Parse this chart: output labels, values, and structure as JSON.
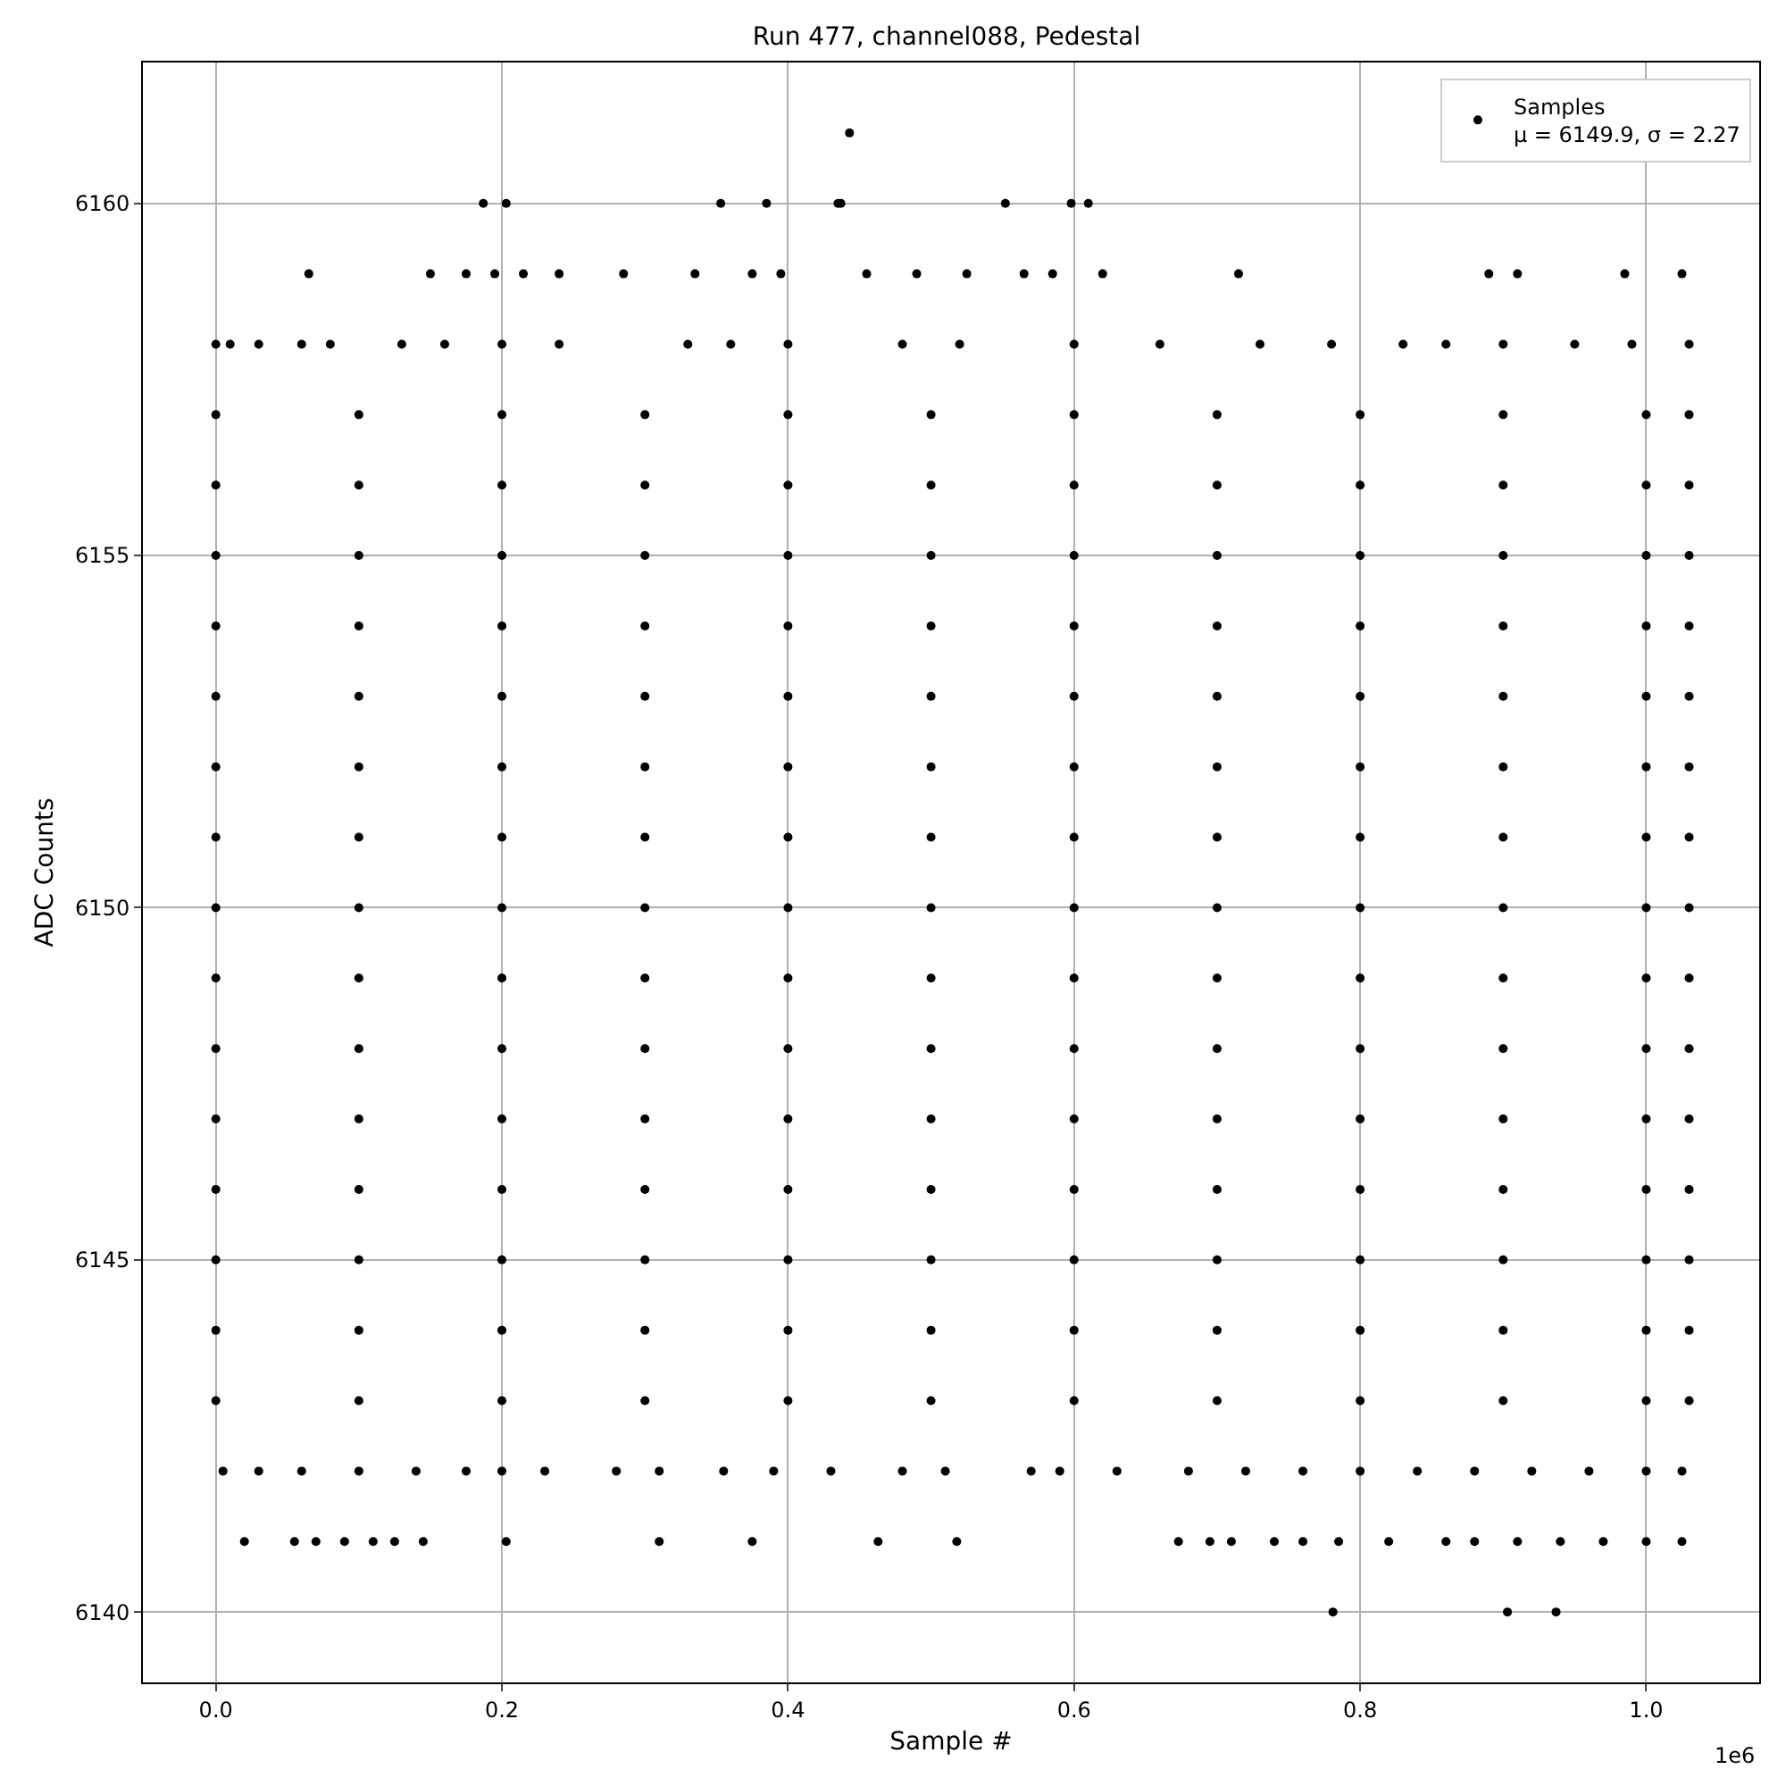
{
  "chart_data": {
    "type": "scatter",
    "title": "Run 477, channel088, Pedestal",
    "xlabel": "Sample #",
    "ylabel": "ADC Counts",
    "annotations": [
      "1e6"
    ],
    "xlim": [
      -0.051,
      1.079
    ],
    "xticks": [
      {
        "value": 0,
        "label": "0.0"
      },
      0.2,
      0.4,
      0.6,
      0.8,
      {
        "value": 1,
        "label": "1.0"
      }
    ],
    "ylim": [
      6139,
      6162
    ],
    "yticks": [
      6140,
      6145,
      6150,
      6155,
      6160
    ],
    "grid": true,
    "legend": "top right",
    "marker": "circle",
    "series": [
      {
        "name": "Samples\nμ = 6149.9, σ = 2.27",
        "color": "#000000",
        "x": [
          0,
          0.1,
          0.2,
          0.3,
          0.4,
          0.5,
          0.6,
          0.7,
          0.8,
          0.9,
          1.0,
          1.03,
          0,
          0.1,
          0.2,
          0.3,
          0.4,
          0.5,
          0.6,
          0.7,
          0.8,
          0.9,
          1.0,
          1.03,
          0,
          0.1,
          0.2,
          0.3,
          0.4,
          0.5,
          0.6,
          0.7,
          0.8,
          0.9,
          1.0,
          1.03,
          0,
          0.1,
          0.2,
          0.3,
          0.4,
          0.5,
          0.6,
          0.7,
          0.8,
          0.9,
          1.0,
          1.03,
          0,
          0.1,
          0.2,
          0.3,
          0.4,
          0.5,
          0.6,
          0.7,
          0.8,
          0.9,
          1.0,
          1.03,
          0,
          0.1,
          0.2,
          0.3,
          0.4,
          0.5,
          0.6,
          0.7,
          0.8,
          0.9,
          1.0,
          1.03,
          0,
          0.1,
          0.2,
          0.3,
          0.4,
          0.5,
          0.6,
          0.7,
          0.8,
          0.9,
          1.0,
          1.03,
          0,
          0.1,
          0.2,
          0.3,
          0.4,
          0.5,
          0.6,
          0.7,
          0.8,
          0.9,
          1.0,
          1.03,
          0,
          0.1,
          0.2,
          0.3,
          0.4,
          0.5,
          0.6,
          0.7,
          0.8,
          0.9,
          1.0,
          1.03,
          0,
          0.1,
          0.2,
          0.3,
          0.4,
          0.5,
          0.6,
          0.7,
          0.8,
          0.9,
          1.0,
          1.03,
          0,
          0.1,
          0.2,
          0.3,
          0.4,
          0.5,
          0.6,
          0.7,
          0.8,
          0.9,
          1.0,
          1.03,
          0,
          0.1,
          0.2,
          0.3,
          0.4,
          0.5,
          0.6,
          0.7,
          0.8,
          0.9,
          1.0,
          1.03,
          0,
          0.1,
          0.2,
          0.3,
          0.4,
          0.5,
          0.6,
          0.7,
          0.8,
          0.9,
          1.0,
          1.03,
          0,
          0.1,
          0.2,
          0.3,
          0.4,
          0.5,
          0.6,
          0.7,
          0.8,
          0.9,
          1.0,
          1.03,
          0,
          0.1,
          0.2,
          0.3,
          0.4,
          0.5,
          0.6,
          0.7,
          0.8,
          0.9,
          1.0,
          1.03,
          0,
          0.01,
          0.03,
          0.06,
          0.08,
          0.13,
          0.16,
          0.2,
          0.24,
          0.33,
          0.36,
          0.4,
          0.48,
          0.52,
          0.6,
          0.66,
          0.73,
          0.78,
          0.83,
          0.86,
          0.9,
          0.95,
          0.99,
          1.03,
          0.065,
          0.15,
          0.175,
          0.195,
          0.215,
          0.24,
          0.285,
          0.335,
          0.375,
          0.395,
          0.455,
          0.49,
          0.525,
          0.565,
          0.585,
          0.62,
          0.715,
          0.89,
          0.91,
          0.985,
          1.025,
          0.187,
          0.203,
          0.353,
          0.385,
          0.435,
          0.437,
          0.552,
          0.598,
          0.61,
          0.443,
          0.005,
          0.03,
          0.06,
          0.1,
          0.14,
          0.175,
          0.2,
          0.23,
          0.28,
          0.31,
          0.355,
          0.39,
          0.43,
          0.48,
          0.51,
          0.57,
          0.59,
          0.63,
          0.68,
          0.72,
          0.76,
          0.8,
          0.84,
          0.88,
          0.92,
          0.96,
          1.0,
          1.025,
          0.02,
          0.055,
          0.07,
          0.09,
          0.11,
          0.125,
          0.145,
          0.203,
          0.31,
          0.375,
          0.463,
          0.518,
          0.673,
          0.695,
          0.71,
          0.74,
          0.76,
          0.785,
          0.82,
          0.86,
          0.88,
          0.91,
          0.94,
          0.97,
          1.0,
          1.025,
          0.781,
          0.903,
          0.937
        ],
        "values": [
          6143,
          6143,
          6143,
          6143,
          6143,
          6143,
          6143,
          6143,
          6143,
          6143,
          6143,
          6143,
          6144,
          6144,
          6144,
          6144,
          6144,
          6144,
          6144,
          6144,
          6144,
          6144,
          6144,
          6144,
          6145,
          6145,
          6145,
          6145,
          6145,
          6145,
          6145,
          6145,
          6145,
          6145,
          6145,
          6145,
          6146,
          6146,
          6146,
          6146,
          6146,
          6146,
          6146,
          6146,
          6146,
          6146,
          6146,
          6146,
          6147,
          6147,
          6147,
          6147,
          6147,
          6147,
          6147,
          6147,
          6147,
          6147,
          6147,
          6147,
          6148,
          6148,
          6148,
          6148,
          6148,
          6148,
          6148,
          6148,
          6148,
          6148,
          6148,
          6148,
          6149,
          6149,
          6149,
          6149,
          6149,
          6149,
          6149,
          6149,
          6149,
          6149,
          6149,
          6149,
          6150,
          6150,
          6150,
          6150,
          6150,
          6150,
          6150,
          6150,
          6150,
          6150,
          6150,
          6150,
          6151,
          6151,
          6151,
          6151,
          6151,
          6151,
          6151,
          6151,
          6151,
          6151,
          6151,
          6151,
          6152,
          6152,
          6152,
          6152,
          6152,
          6152,
          6152,
          6152,
          6152,
          6152,
          6152,
          6152,
          6153,
          6153,
          6153,
          6153,
          6153,
          6153,
          6153,
          6153,
          6153,
          6153,
          6153,
          6153,
          6154,
          6154,
          6154,
          6154,
          6154,
          6154,
          6154,
          6154,
          6154,
          6154,
          6154,
          6154,
          6155,
          6155,
          6155,
          6155,
          6155,
          6155,
          6155,
          6155,
          6155,
          6155,
          6155,
          6155,
          6156,
          6156,
          6156,
          6156,
          6156,
          6156,
          6156,
          6156,
          6156,
          6156,
          6156,
          6156,
          6157,
          6157,
          6157,
          6157,
          6157,
          6157,
          6157,
          6157,
          6157,
          6157,
          6157,
          6157,
          6158,
          6158,
          6158,
          6158,
          6158,
          6158,
          6158,
          6158,
          6158,
          6158,
          6158,
          6158,
          6158,
          6158,
          6158,
          6158,
          6158,
          6158,
          6158,
          6158,
          6158,
          6158,
          6158,
          6158,
          6159,
          6159,
          6159,
          6159,
          6159,
          6159,
          6159,
          6159,
          6159,
          6159,
          6159,
          6159,
          6159,
          6159,
          6159,
          6159,
          6159,
          6159,
          6159,
          6159,
          6159,
          6160,
          6160,
          6160,
          6160,
          6160,
          6160,
          6160,
          6160,
          6160,
          6161,
          6142,
          6142,
          6142,
          6142,
          6142,
          6142,
          6142,
          6142,
          6142,
          6142,
          6142,
          6142,
          6142,
          6142,
          6142,
          6142,
          6142,
          6142,
          6142,
          6142,
          6142,
          6142,
          6142,
          6142,
          6142,
          6142,
          6142,
          6142,
          6141,
          6141,
          6141,
          6141,
          6141,
          6141,
          6141,
          6141,
          6141,
          6141,
          6141,
          6141,
          6141,
          6141,
          6141,
          6141,
          6141,
          6141,
          6141,
          6141,
          6141,
          6141,
          6141,
          6141,
          6141,
          6141,
          6140,
          6140,
          6140
        ]
      }
    ]
  }
}
